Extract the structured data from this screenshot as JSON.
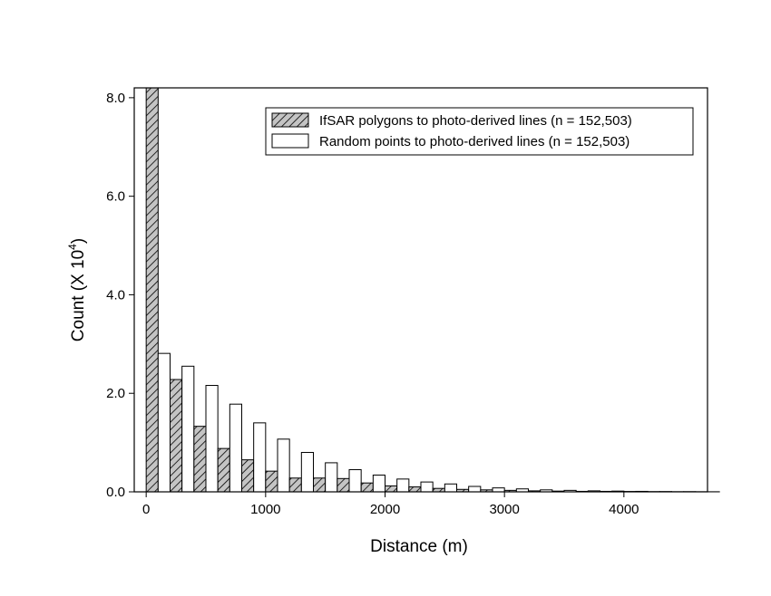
{
  "chart_data": {
    "type": "bar",
    "xlabel": "Distance (m)",
    "ylabel_main": "Count (X 10",
    "ylabel_sup": "4",
    "ylabel_end": ")",
    "xlim": [
      -100,
      4700
    ],
    "ylim": [
      0,
      8.2
    ],
    "x_ticks": [
      0,
      1000,
      2000,
      3000,
      4000
    ],
    "x_tick_labels": [
      "0",
      "1000",
      "2000",
      "3000",
      "4000"
    ],
    "y_ticks": [
      0,
      2,
      4,
      6,
      8
    ],
    "y_tick_labels": [
      "0.0",
      "2.0",
      "4.0",
      "6.0",
      "8.0"
    ],
    "grid": false,
    "legend_position": "top-right",
    "bin_width": 200,
    "bin_starts": [
      0,
      200,
      400,
      600,
      800,
      1000,
      1200,
      1400,
      1600,
      1800,
      2000,
      2200,
      2400,
      2600,
      2800,
      3000,
      3200,
      3400,
      3600,
      3800,
      4000,
      4200,
      4400,
      4600
    ],
    "series": [
      {
        "name": "IfSAR polygons to photo-derived lines (n = 152,503)",
        "style": "hatched",
        "color": "#c0c0c0",
        "values": [
          8.2,
          2.28,
          1.33,
          0.88,
          0.65,
          0.42,
          0.28,
          0.28,
          0.27,
          0.18,
          0.12,
          0.1,
          0.07,
          0.05,
          0.04,
          0.03,
          0.02,
          0.015,
          0.01,
          0.01,
          0.008,
          0.005,
          0.003,
          0.002
        ]
      },
      {
        "name": "Random points to photo-derived lines (n = 152,503)",
        "style": "open",
        "color": "#ffffff",
        "values": [
          2.81,
          2.55,
          2.16,
          1.78,
          1.4,
          1.07,
          0.8,
          0.59,
          0.45,
          0.34,
          0.26,
          0.2,
          0.16,
          0.11,
          0.08,
          0.06,
          0.04,
          0.03,
          0.02,
          0.015,
          0.01,
          0.006,
          0.004,
          0.002
        ]
      }
    ]
  }
}
